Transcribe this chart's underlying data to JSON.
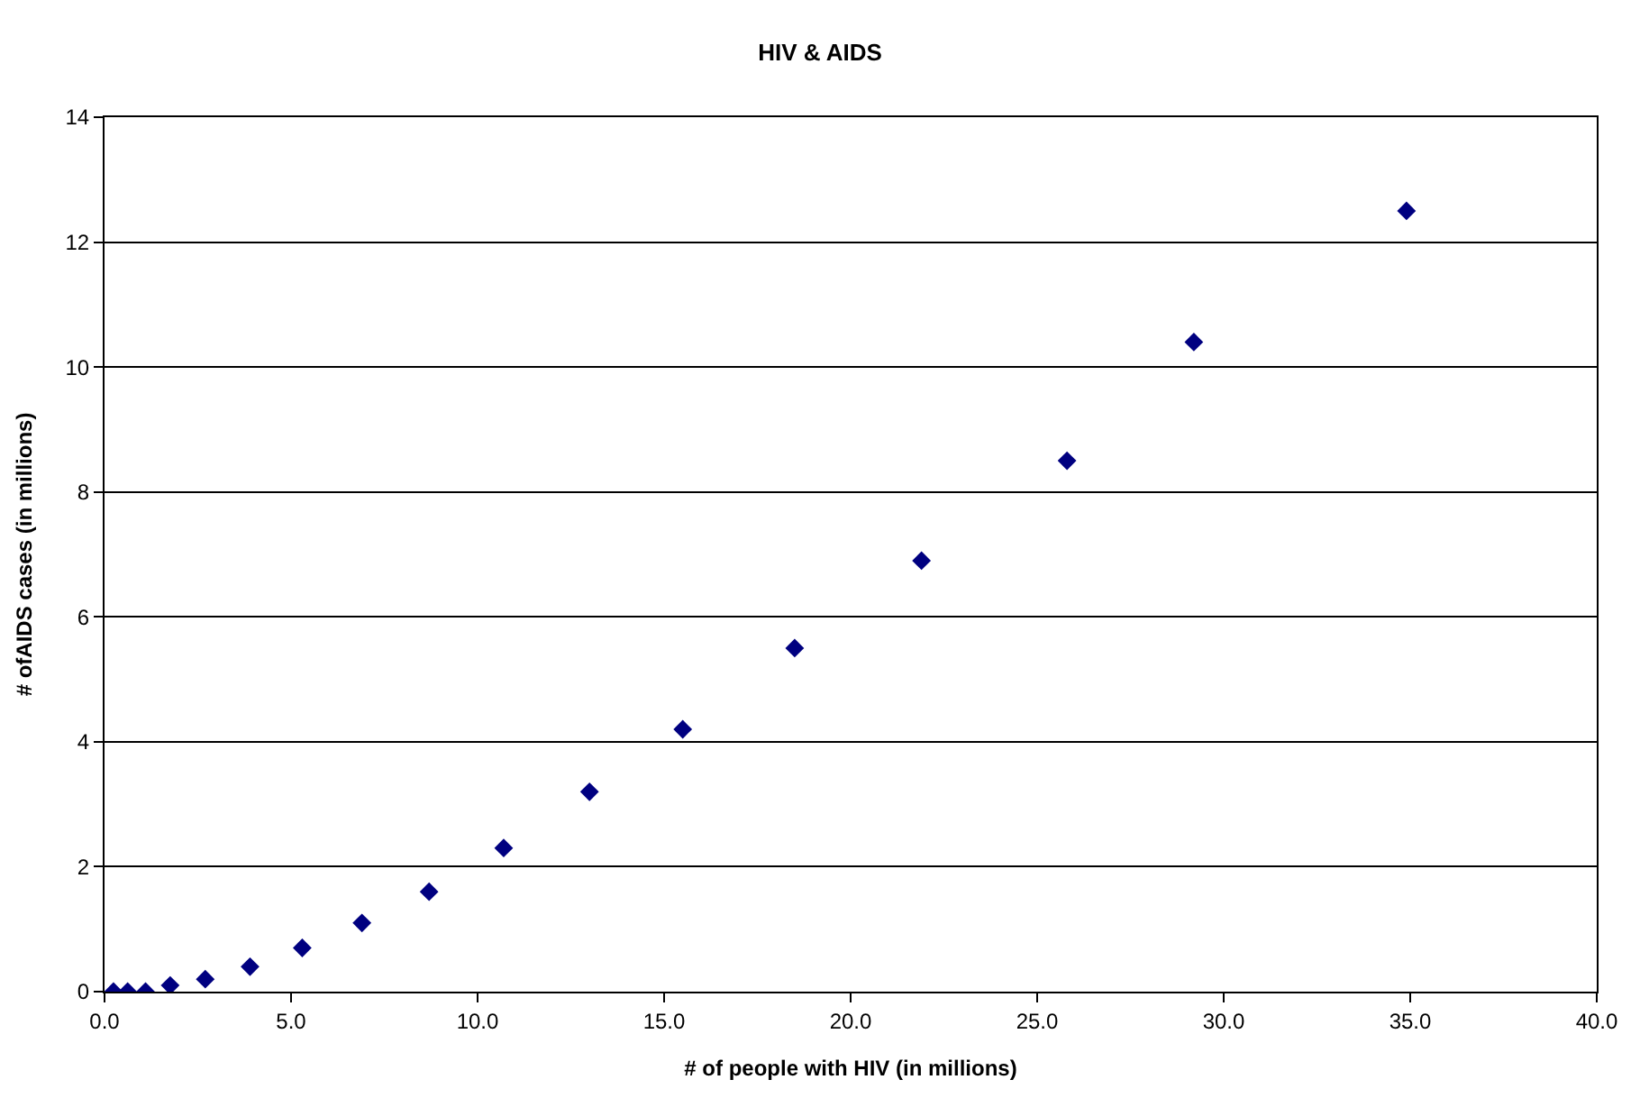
{
  "chart_data": {
    "type": "scatter",
    "title": "HIV & AIDS",
    "xlabel": "# of people with HIV (in millions)",
    "ylabel": "# ofAIDS cases (in millions)",
    "x": [
      0.24,
      0.62,
      1.1,
      1.76,
      2.7,
      3.9,
      5.3,
      6.9,
      8.7,
      10.7,
      13.0,
      15.5,
      18.5,
      21.9,
      25.8,
      29.2,
      34.9
    ],
    "series": [
      {
        "color": "#000080",
        "values": [
          0,
          0,
          0,
          0.1,
          0.2,
          0.4,
          0.7,
          1.1,
          1.6,
          2.3,
          3.2,
          4.2,
          5.5,
          6.9,
          8.5,
          10.4,
          12.5
        ]
      }
    ],
    "xlim": [
      0,
      40
    ],
    "xticks": [
      {
        "value": 0,
        "label": "0.0"
      },
      {
        "value": 5,
        "label": "5.0"
      },
      {
        "value": 10,
        "label": "10.0"
      },
      {
        "value": 15,
        "label": "15.0"
      },
      {
        "value": 20,
        "label": "20.0"
      },
      {
        "value": 25,
        "label": "25.0"
      },
      {
        "value": 30,
        "label": "30.0"
      },
      {
        "value": 35,
        "label": "35.0"
      },
      {
        "value": 40,
        "label": "40.0"
      }
    ],
    "ylim": [
      0,
      14
    ],
    "yticks": [
      0,
      2,
      4,
      6,
      8,
      10,
      12,
      14
    ],
    "grid": "y",
    "marker": "diamond"
  }
}
